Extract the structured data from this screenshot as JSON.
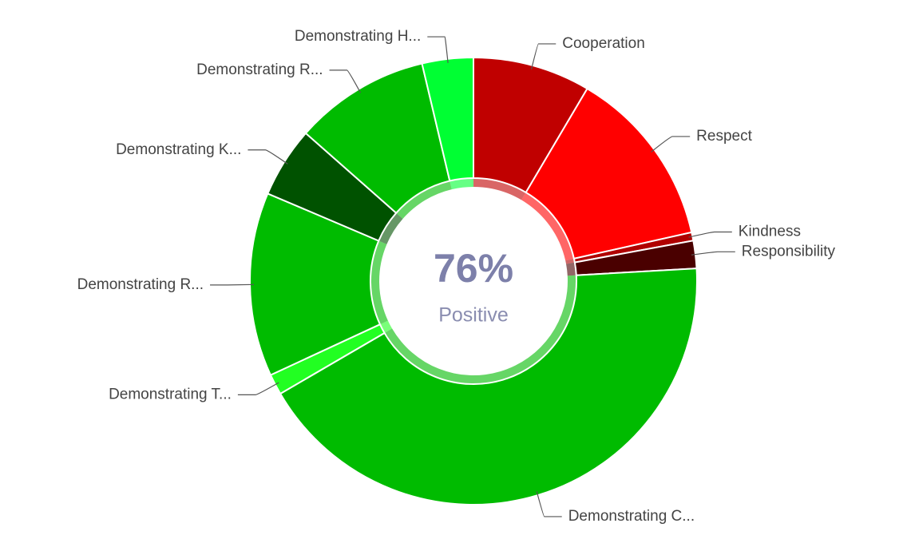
{
  "chart_data": {
    "type": "donut",
    "center_label": "76%",
    "center_sublabel": "Positive",
    "categories": [
      "Cooperation",
      "Respect",
      "Kindness",
      "Responsibility",
      "Demonstrating C...",
      "Demonstrating T...",
      "Demonstrating R...",
      "Demonstrating K...",
      "Demonstrating R...",
      "Demonstrating H..."
    ],
    "values": [
      8.5,
      13,
      0.6,
      2,
      42.5,
      1.5,
      13.3,
      5.1,
      9.8,
      3.7
    ],
    "colors": [
      "#c00000",
      "#ff0000",
      "#b00000",
      "#4a0000",
      "#00bb00",
      "#22ff22",
      "#00bb00",
      "#005200",
      "#00bb00",
      "#00ff33"
    ]
  }
}
